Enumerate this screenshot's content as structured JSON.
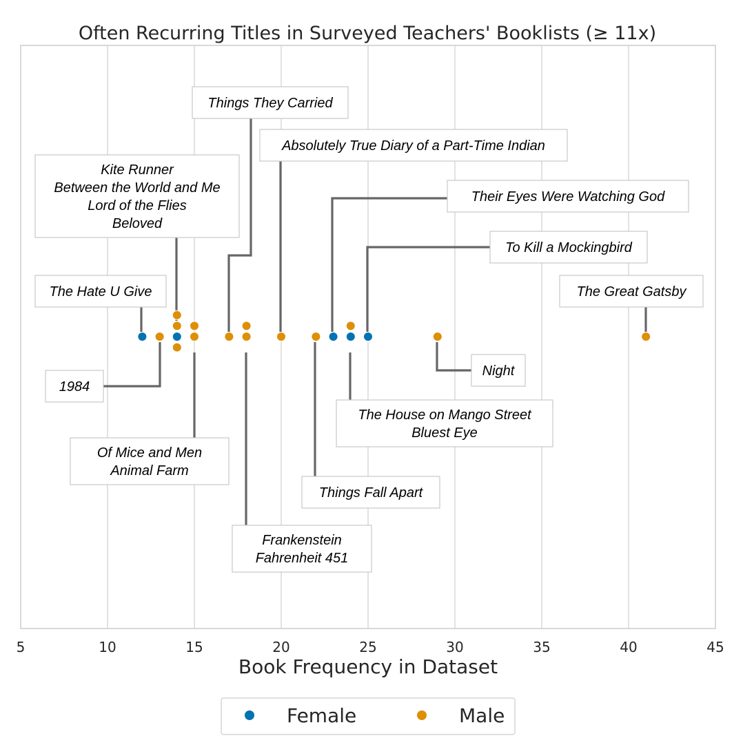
{
  "chart_data": {
    "type": "scatter",
    "title": "Often Recurring Titles in Surveyed Teachers' Booklists (≥ 11x)",
    "xlabel": "Book Frequency in Dataset",
    "ylabel": "",
    "xlim": [
      5,
      45
    ],
    "xticks": [
      "5",
      "10",
      "15",
      "20",
      "25",
      "30",
      "35",
      "40",
      "45"
    ],
    "grid": "vertical",
    "legend_position": "bottom-center",
    "series": [
      {
        "name": "Female",
        "color": "#0173b2",
        "x": [
          12,
          14,
          23,
          24,
          25
        ]
      },
      {
        "name": "Male",
        "color": "#de8f05",
        "x": [
          13,
          14,
          14,
          14,
          15,
          15,
          17,
          18,
          18,
          20,
          22,
          24,
          29,
          41
        ]
      }
    ],
    "annotations": [
      {
        "lines": [
          "The Hate U Give"
        ],
        "x": 12
      },
      {
        "lines": [
          "1984"
        ],
        "x": 13
      },
      {
        "lines": [
          "Kite Runner",
          "Between the World and Me",
          "Lord of the Flies",
          "Beloved"
        ],
        "x": 14
      },
      {
        "lines": [
          "Of Mice and Men",
          "Animal Farm"
        ],
        "x": 15
      },
      {
        "lines": [
          "Things They Carried"
        ],
        "x": 17
      },
      {
        "lines": [
          "Frankenstein",
          "Fahrenheit 451"
        ],
        "x": 18
      },
      {
        "lines": [
          "Absolutely True Diary of a Part-Time Indian"
        ],
        "x": 20
      },
      {
        "lines": [
          "Things Fall Apart"
        ],
        "x": 22
      },
      {
        "lines": [
          "Their Eyes Were Watching God"
        ],
        "x": 23
      },
      {
        "lines": [
          "The House on Mango Street",
          "Bluest Eye"
        ],
        "x": 24
      },
      {
        "lines": [
          "To Kill a Mockingbird"
        ],
        "x": 25
      },
      {
        "lines": [
          "Night"
        ],
        "x": 29
      },
      {
        "lines": [
          "The Great Gatsby"
        ],
        "x": 41
      }
    ]
  }
}
